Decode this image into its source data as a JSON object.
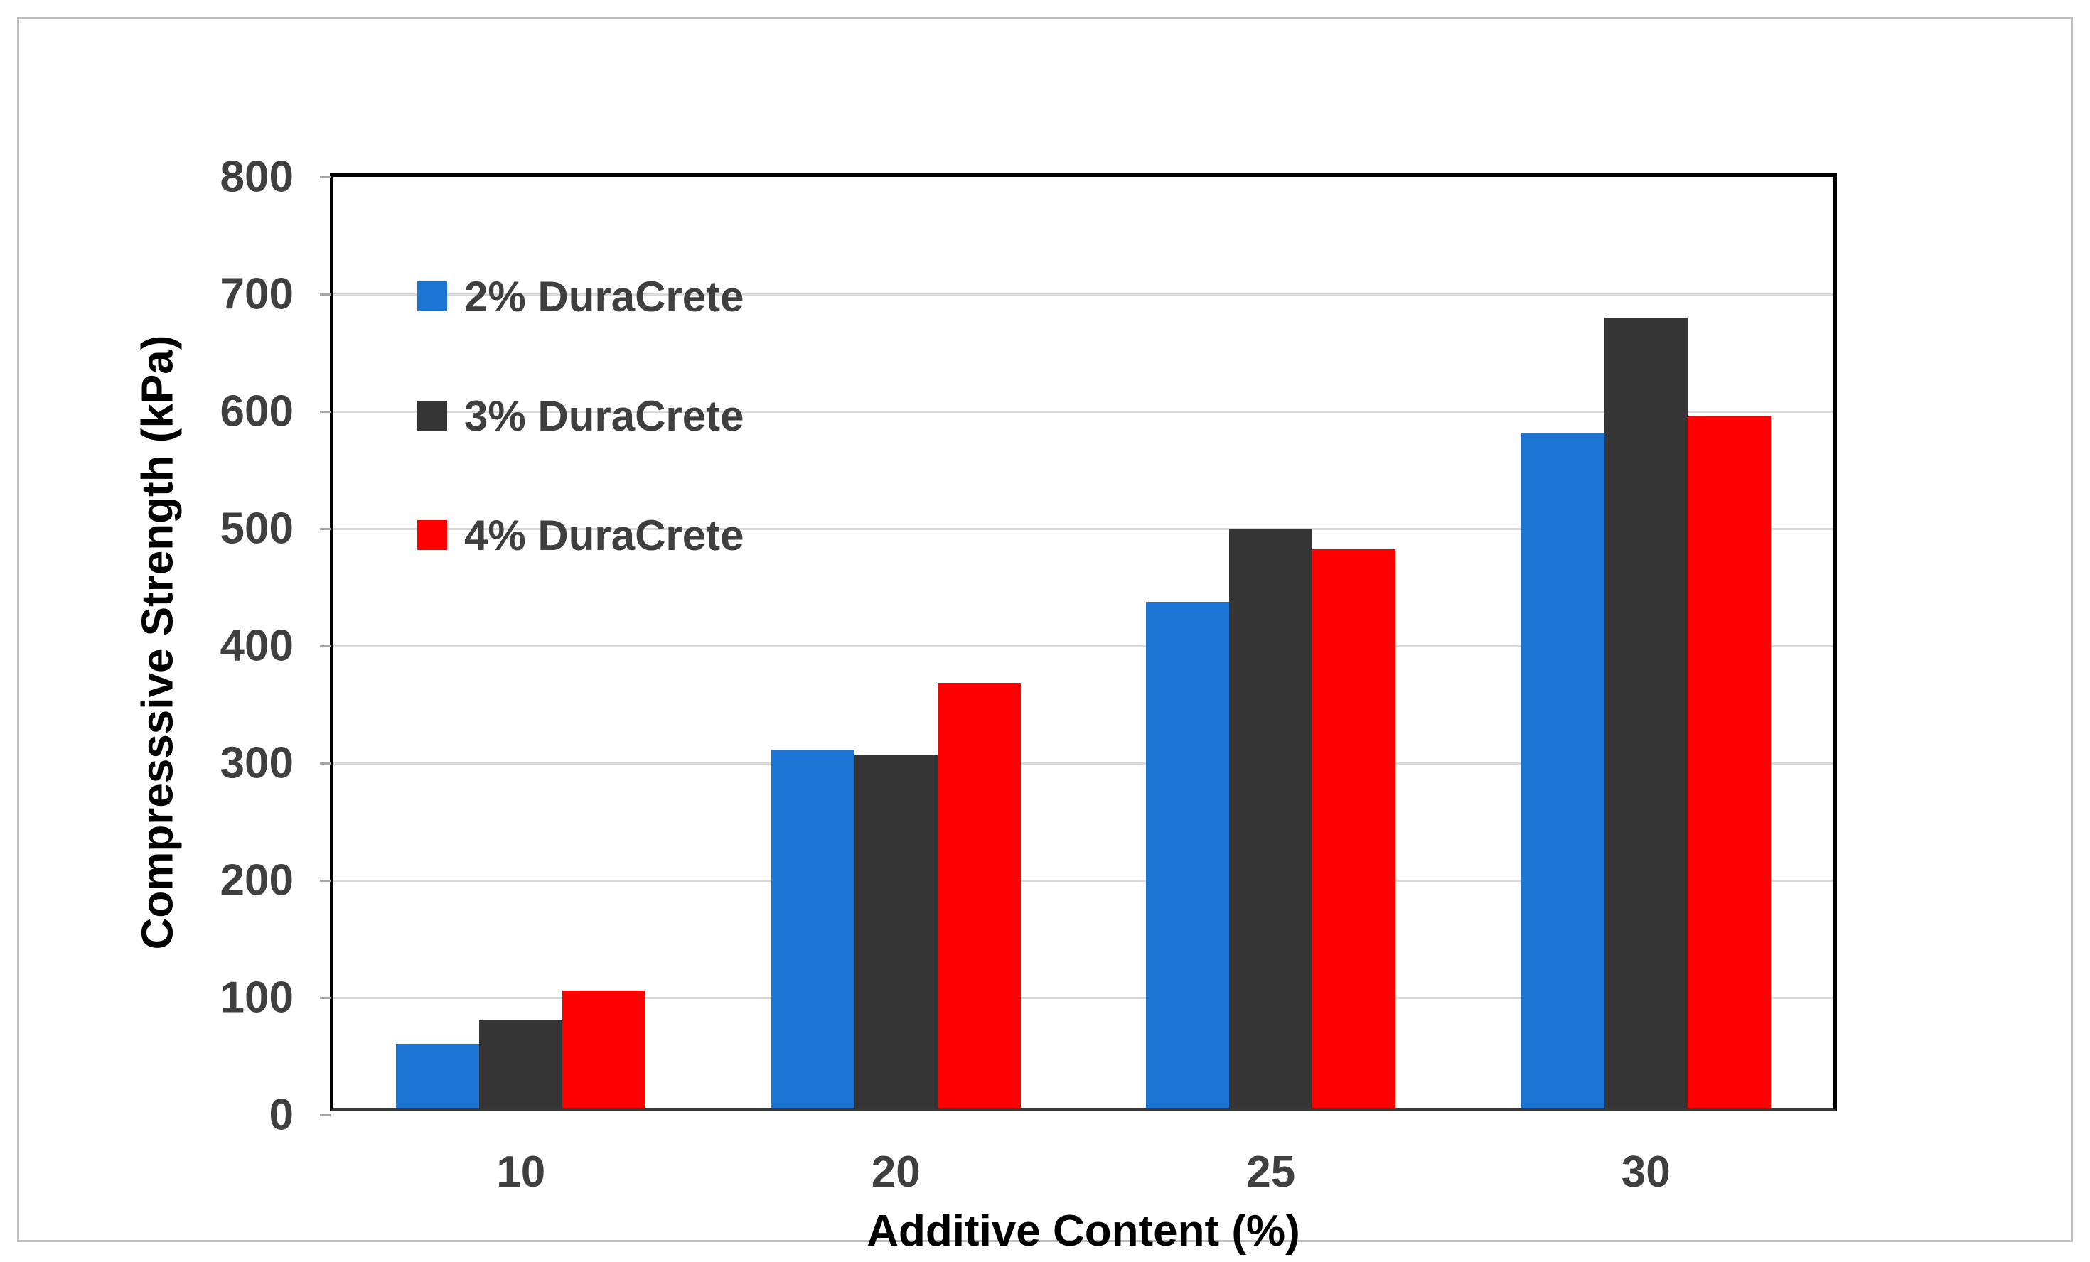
{
  "figure": {
    "background": "#ffffff",
    "frame_border_color": "#bfbfbf",
    "plot_border_color": "#000000",
    "gridline_color": "#d9d9d9",
    "tick_text_color": "#3f3f3f",
    "axis_title_color": "#000000"
  },
  "chart_data": {
    "type": "bar",
    "title": "",
    "xlabel": "Additive Content (%)",
    "ylabel": "Compresssive Strength (kPa)",
    "categories": [
      "10",
      "20",
      "25",
      "30"
    ],
    "series": [
      {
        "name": "2% DuraCrete",
        "color": "#1b74d2",
        "values": [
          55,
          308,
          435,
          580
        ]
      },
      {
        "name": "3% DuraCrete",
        "color": "#353535",
        "values": [
          75,
          303,
          498,
          679
        ]
      },
      {
        "name": "4% DuraCrete",
        "color": "#ff0000",
        "values": [
          101,
          365,
          480,
          594
        ]
      }
    ],
    "ylim": [
      0,
      800
    ],
    "ytick_step": 100,
    "yticks": [
      "0",
      "100",
      "200",
      "300",
      "400",
      "500",
      "600",
      "700",
      "800"
    ],
    "grid": "horizontal",
    "legend_position": "inside-top-left"
  }
}
